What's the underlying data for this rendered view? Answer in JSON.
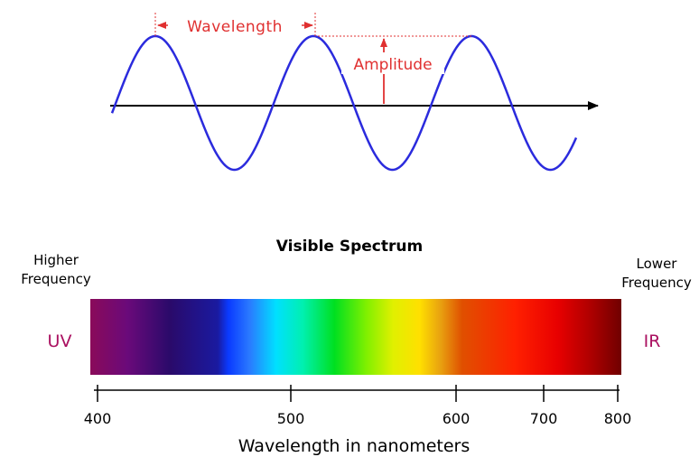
{
  "wave": {
    "wavelength_label": "Wavelength",
    "amplitude_label": "Amplitude"
  },
  "spectrum": {
    "title": "Visible Spectrum",
    "left_label_line1": "Higher",
    "left_label_line2": "Frequency",
    "right_label_line1": "Lower",
    "right_label_line2": "Frequency",
    "uv_label": "UV",
    "ir_label": "IR",
    "axis_label": "Wavelength in nanometers",
    "tick_labels": [
      "400",
      "500",
      "600",
      "700",
      "800"
    ]
  },
  "colors": {
    "wave": "#2b2bdd",
    "annotation": "#e03030",
    "axis": "#000000",
    "uv_ir_text": "#aa1060"
  }
}
